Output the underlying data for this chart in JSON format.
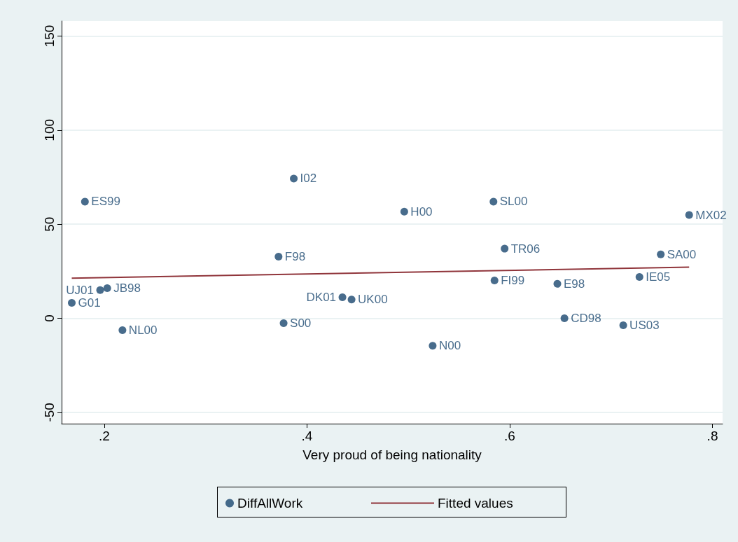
{
  "chart_data": {
    "type": "scatter",
    "xlabel": "Very proud of being nationality",
    "xlim": [
      0.158,
      0.81
    ],
    "ylim": [
      -56,
      158
    ],
    "xticks": [
      {
        "value": 0.2,
        "label": ".2"
      },
      {
        "value": 0.4,
        "label": ".4"
      },
      {
        "value": 0.6,
        "label": ".6"
      },
      {
        "value": 0.8,
        "label": ".8"
      }
    ],
    "yticks": [
      -50,
      0,
      50,
      100,
      150
    ],
    "grid": "y",
    "legend": "bottom",
    "marker": "circle",
    "series": [
      {
        "name": "DiffAllWork",
        "color": "#1a476f",
        "x": [
          0.168,
          0.181,
          0.196,
          0.203,
          0.218,
          0.372,
          0.377,
          0.387,
          0.435,
          0.444,
          0.496,
          0.524,
          0.584,
          0.585,
          0.595,
          0.647,
          0.654,
          0.712,
          0.728,
          0.749,
          0.777
        ],
        "values": [
          8.2,
          62,
          15,
          16,
          -6.3,
          32.8,
          -2.6,
          74.3,
          11.2,
          10,
          56.7,
          -14.6,
          62,
          20.1,
          37,
          18.3,
          0,
          -3.7,
          22,
          34,
          54.9
        ]
      },
      {
        "name": "Fitted values",
        "type": "line",
        "color": "#90353b",
        "marker": "none",
        "x": [
          0.168,
          0.777
        ],
        "values": [
          21.3,
          27.2
        ]
      }
    ],
    "annotations": [
      {
        "text": "G01",
        "x": 0.168,
        "y": 8.2
      },
      {
        "text": "ES99",
        "x": 0.181,
        "y": 62
      },
      {
        "text": "UJ01",
        "x": 0.196,
        "y": 15
      },
      {
        "text": "JB98",
        "x": 0.203,
        "y": 16
      },
      {
        "text": "NL00",
        "x": 0.218,
        "y": -6.3
      },
      {
        "text": "F98",
        "x": 0.372,
        "y": 32.8
      },
      {
        "text": "S00",
        "x": 0.377,
        "y": -2.6
      },
      {
        "text": "I02",
        "x": 0.387,
        "y": 74.3
      },
      {
        "text": "DK01",
        "x": 0.435,
        "y": 11.2
      },
      {
        "text": "UK00",
        "x": 0.444,
        "y": 10
      },
      {
        "text": "H00",
        "x": 0.496,
        "y": 56.7
      },
      {
        "text": "N00",
        "x": 0.524,
        "y": -14.6
      },
      {
        "text": "SL00",
        "x": 0.584,
        "y": 62
      },
      {
        "text": "FI99",
        "x": 0.585,
        "y": 20.1
      },
      {
        "text": "TR06",
        "x": 0.595,
        "y": 37
      },
      {
        "text": "E98",
        "x": 0.647,
        "y": 18.3
      },
      {
        "text": "CD98",
        "x": 0.654,
        "y": 0
      },
      {
        "text": "US03",
        "x": 0.712,
        "y": -3.7
      },
      {
        "text": "IE05",
        "x": 0.728,
        "y": 22
      },
      {
        "text": "SA00",
        "x": 0.749,
        "y": 34
      },
      {
        "text": "MX02",
        "x": 0.777,
        "y": 54.9
      }
    ]
  }
}
